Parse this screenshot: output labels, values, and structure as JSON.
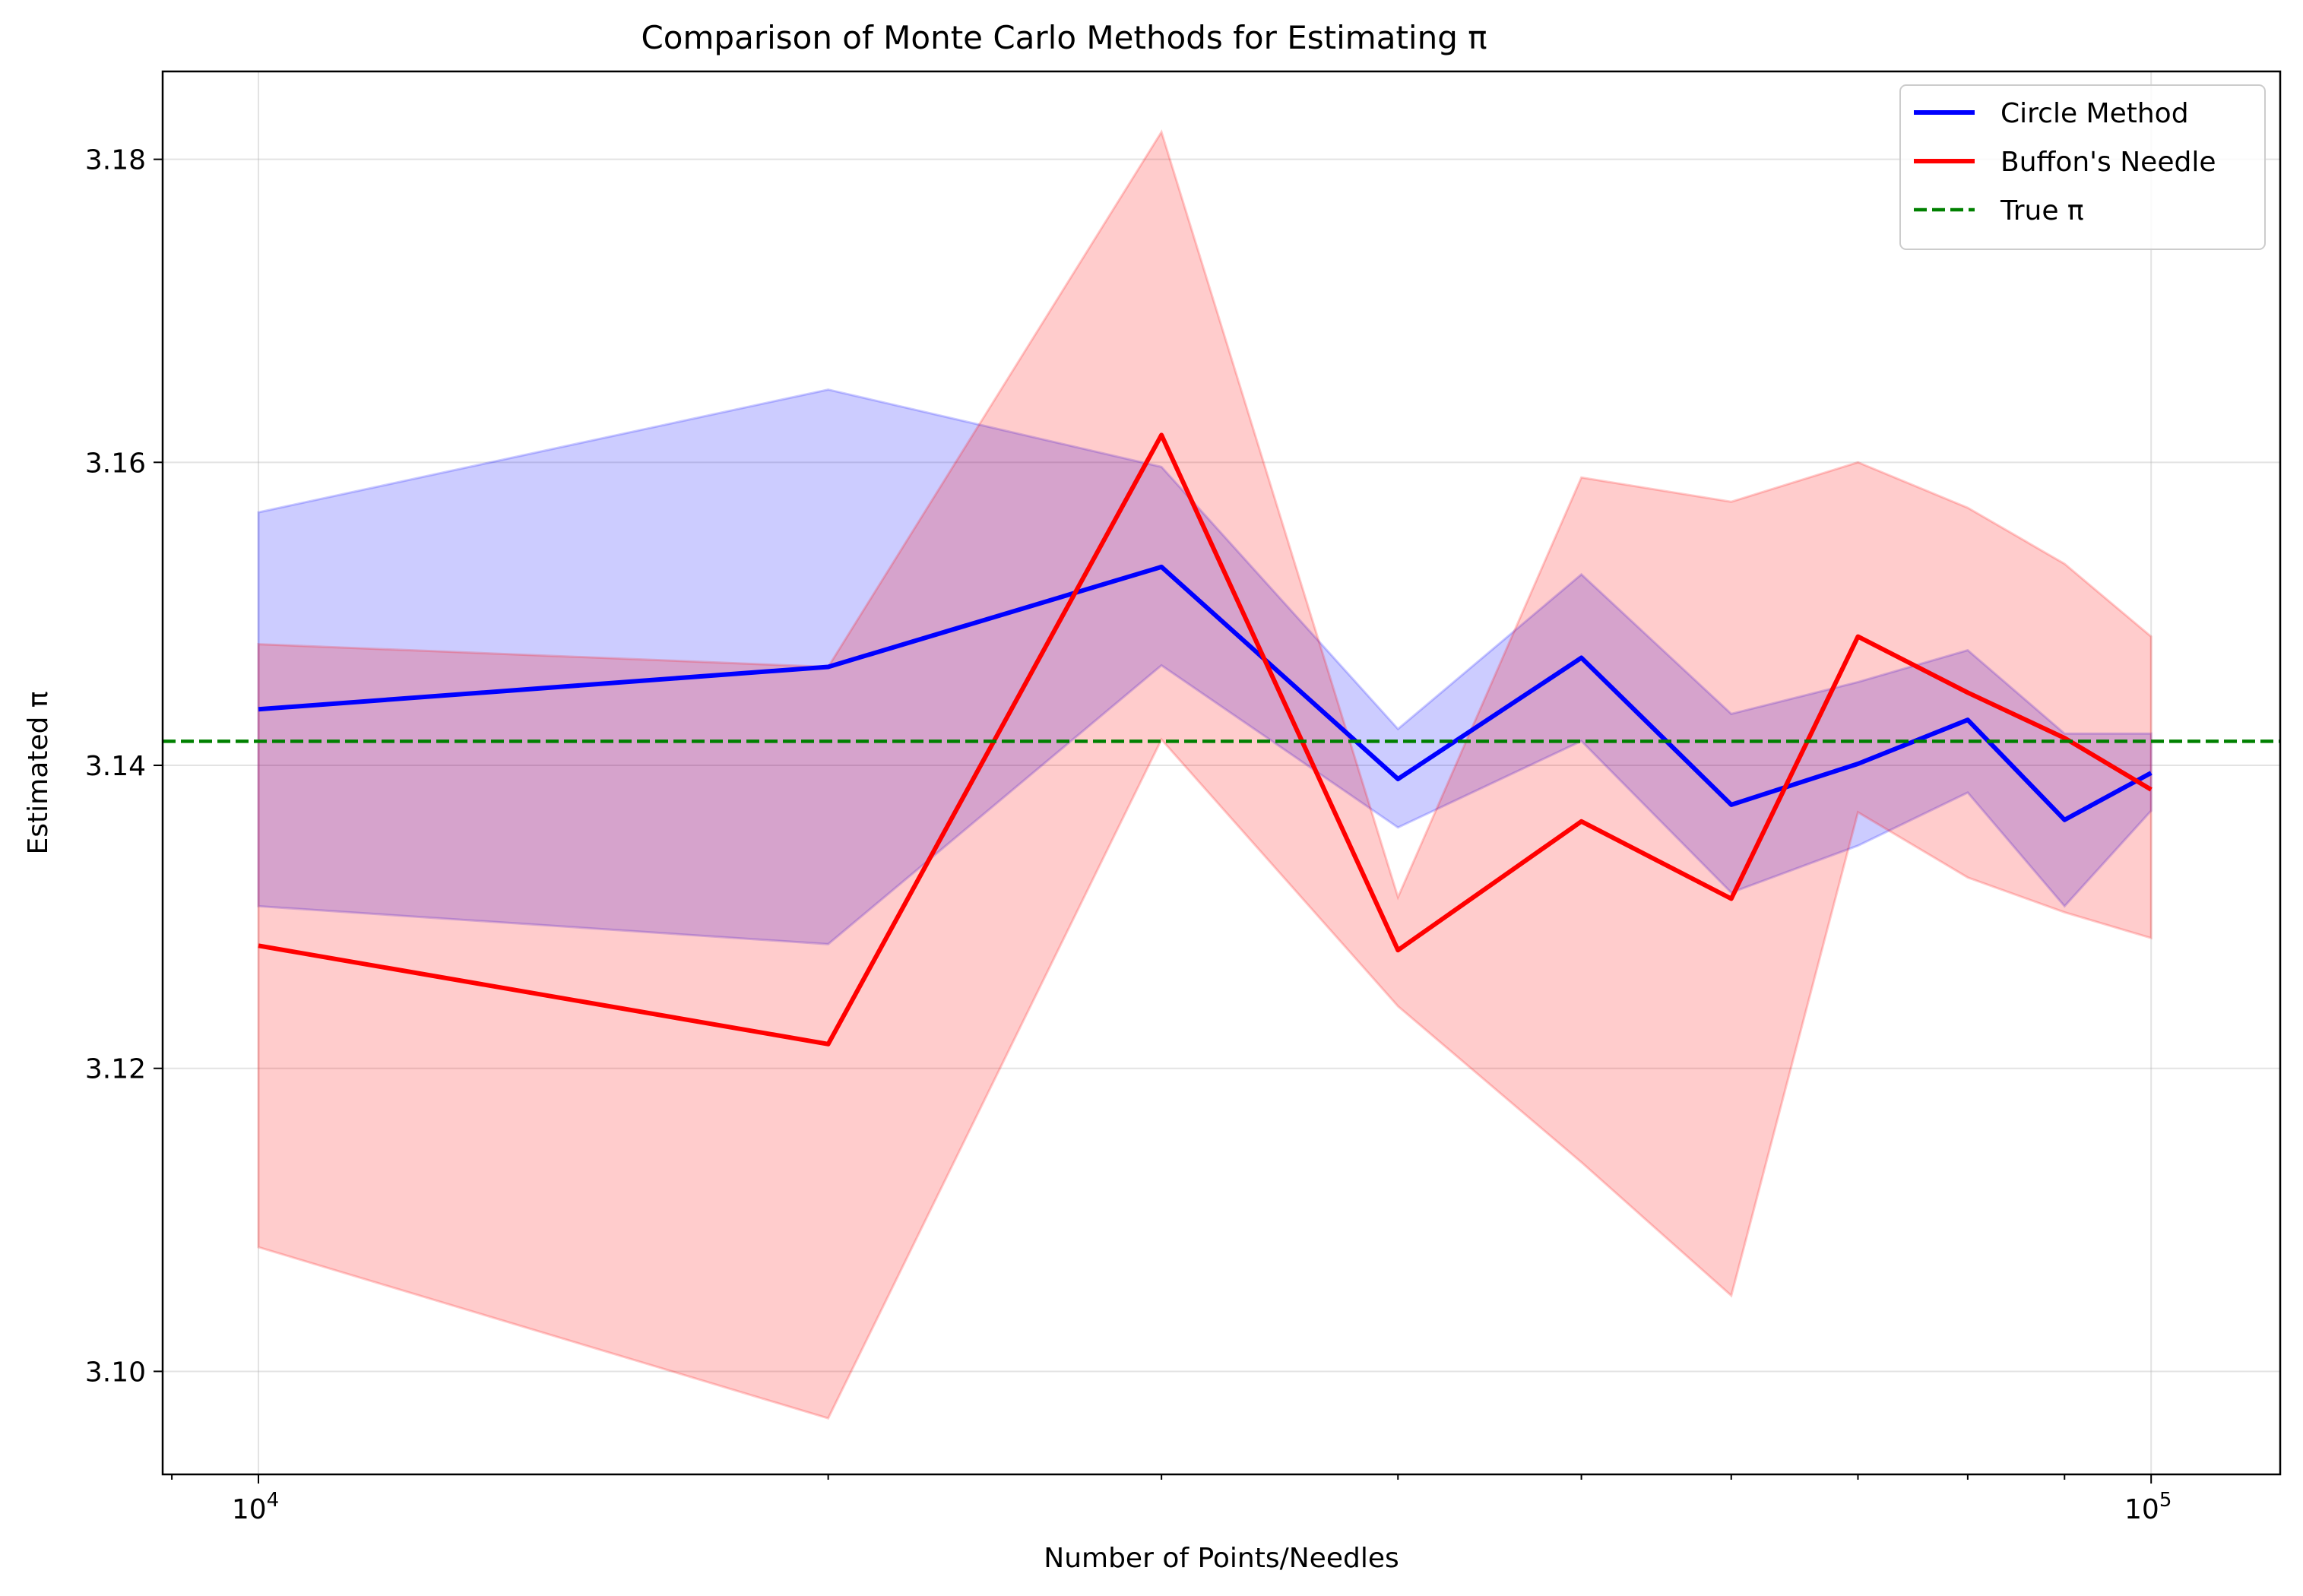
{
  "chart_data": {
    "type": "line",
    "title": "Comparison of Monte Carlo Methods for Estimating π",
    "xlabel": "Number of Points/Needles",
    "ylabel": "Estimated π",
    "xscale": "log",
    "xlim": [
      8900,
      117000
    ],
    "ylim": [
      3.0932,
      3.1858
    ],
    "x_ticks": [
      {
        "value": 10000,
        "base": "10",
        "exp": "4"
      },
      {
        "value": 100000,
        "base": "10",
        "exp": "5"
      }
    ],
    "y_ticks": [
      {
        "value": 3.1,
        "label": "3.10"
      },
      {
        "value": 3.12,
        "label": "3.12"
      },
      {
        "value": 3.14,
        "label": "3.14"
      },
      {
        "value": 3.16,
        "label": "3.16"
      },
      {
        "value": 3.18,
        "label": "3.18"
      }
    ],
    "grid": true,
    "legend_position": "top-right",
    "reference_line": {
      "name": "True π",
      "value": 3.14159,
      "color": "#008000",
      "style": "dashed"
    },
    "x": [
      10000,
      20000,
      30000,
      40000,
      50000,
      60000,
      70000,
      80000,
      90000,
      100000
    ],
    "series": [
      {
        "name": "Circle Method",
        "color": "#0000ff",
        "band_color": "#0000ff",
        "values": [
          3.1437,
          3.1465,
          3.1531,
          3.1391,
          3.1471,
          3.1374,
          3.1401,
          3.143,
          3.1364,
          3.1395
        ],
        "lower": [
          3.1307,
          3.1282,
          3.1466,
          3.1359,
          3.1416,
          3.1316,
          3.1347,
          3.1382,
          3.1307,
          3.137
        ],
        "upper": [
          3.1567,
          3.1648,
          3.1597,
          3.1424,
          3.1526,
          3.1434,
          3.1455,
          3.1476,
          3.1421,
          3.1421
        ]
      },
      {
        "name": "Buffon's Needle",
        "color": "#ff0000",
        "band_color": "#ff0000",
        "values": [
          3.1281,
          3.1216,
          3.1618,
          3.1278,
          3.1363,
          3.1312,
          3.1485,
          3.1448,
          3.1418,
          3.1384
        ],
        "lower": [
          3.1082,
          3.0969,
          3.1417,
          3.1241,
          3.1138,
          3.105,
          3.1369,
          3.1326,
          3.1303,
          3.1286
        ],
        "upper": [
          3.148,
          3.1465,
          3.1818,
          3.1313,
          3.159,
          3.1574,
          3.16,
          3.157,
          3.1533,
          3.1485
        ]
      }
    ]
  }
}
